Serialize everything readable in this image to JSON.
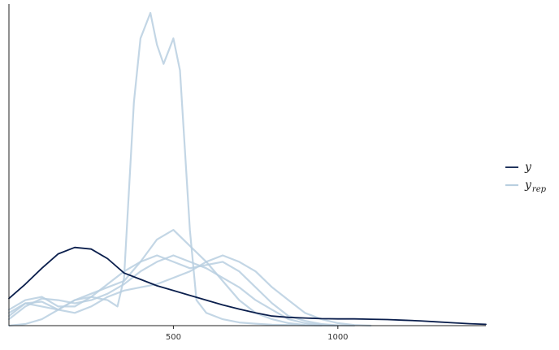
{
  "chart_data": {
    "type": "line",
    "title": "",
    "xlabel": "",
    "ylabel": "",
    "xlim": [
      0,
      1450
    ],
    "ylim": [
      0,
      1
    ],
    "x_ticks": [
      500,
      1000
    ],
    "x_tick_labels": [
      "500",
      "1000"
    ],
    "grid": false,
    "legend_position": "right",
    "colors": {
      "y": "#0b1f4d",
      "y_rep": "#b9cfe0"
    },
    "legend": [
      {
        "key": "y",
        "label": "y",
        "subscript": ""
      },
      {
        "key": "y_rep",
        "label": "y",
        "subscript": "rep"
      }
    ],
    "series": [
      {
        "key": "y",
        "x": [
          0,
          50,
          100,
          150,
          200,
          250,
          300,
          350,
          400,
          450,
          500,
          550,
          600,
          650,
          700,
          750,
          800,
          850,
          900,
          950,
          1000,
          1050,
          1100,
          1150,
          1200,
          1250,
          1300,
          1350,
          1400,
          1450
        ],
        "values": [
          0.085,
          0.13,
          0.18,
          0.225,
          0.245,
          0.24,
          0.21,
          0.165,
          0.145,
          0.125,
          0.11,
          0.095,
          0.08,
          0.065,
          0.052,
          0.04,
          0.03,
          0.026,
          0.024,
          0.022,
          0.021,
          0.021,
          0.02,
          0.019,
          0.017,
          0.015,
          0.012,
          0.009,
          0.006,
          0.004
        ]
      },
      {
        "key": "y_rep",
        "x": [
          0,
          50,
          100,
          150,
          200,
          250,
          300,
          330,
          350,
          380,
          400,
          430,
          450,
          470,
          500,
          520,
          550,
          570,
          600,
          650,
          700,
          750,
          800,
          850,
          900,
          950,
          1000
        ],
        "values": [
          0,
          0.005,
          0.02,
          0.05,
          0.08,
          0.09,
          0.08,
          0.06,
          0.15,
          0.7,
          0.9,
          0.98,
          0.88,
          0.82,
          0.9,
          0.8,
          0.3,
          0.08,
          0.04,
          0.02,
          0.01,
          0.006,
          0.003,
          0.002,
          0.001,
          0.0005,
          0
        ]
      },
      {
        "key": "y_rep",
        "x": [
          0,
          50,
          100,
          150,
          200,
          250,
          300,
          350,
          400,
          450,
          500,
          550,
          600,
          650,
          700,
          750,
          800,
          850,
          900,
          950,
          1000,
          1050
        ],
        "values": [
          0.05,
          0.08,
          0.09,
          0.06,
          0.06,
          0.09,
          0.13,
          0.17,
          0.2,
          0.22,
          0.2,
          0.18,
          0.19,
          0.2,
          0.17,
          0.12,
          0.07,
          0.03,
          0.015,
          0.005,
          0.001,
          0
        ]
      },
      {
        "key": "y_rep",
        "x": [
          0,
          50,
          100,
          150,
          200,
          250,
          300,
          350,
          400,
          450,
          500,
          550,
          600,
          650,
          700,
          750,
          800,
          850,
          900,
          950,
          1000
        ],
        "values": [
          0.02,
          0.06,
          0.085,
          0.08,
          0.07,
          0.08,
          0.1,
          0.13,
          0.17,
          0.2,
          0.22,
          0.2,
          0.18,
          0.15,
          0.12,
          0.08,
          0.05,
          0.02,
          0.008,
          0.002,
          0
        ]
      },
      {
        "key": "y_rep",
        "x": [
          0,
          50,
          100,
          150,
          200,
          250,
          300,
          350,
          400,
          450,
          500,
          550,
          600,
          650,
          700,
          750,
          800,
          850,
          900,
          950,
          1000,
          1050,
          1100
        ],
        "values": [
          0.03,
          0.07,
          0.075,
          0.05,
          0.04,
          0.06,
          0.09,
          0.11,
          0.12,
          0.13,
          0.15,
          0.17,
          0.2,
          0.22,
          0.2,
          0.17,
          0.12,
          0.08,
          0.04,
          0.02,
          0.008,
          0.002,
          0
        ]
      },
      {
        "key": "y_rep",
        "x": [
          0,
          50,
          100,
          150,
          200,
          250,
          300,
          350,
          400,
          450,
          500,
          550,
          600,
          650,
          700,
          750,
          800,
          850,
          900,
          950
        ],
        "values": [
          0.04,
          0.07,
          0.06,
          0.05,
          0.08,
          0.1,
          0.12,
          0.14,
          0.2,
          0.27,
          0.3,
          0.25,
          0.2,
          0.14,
          0.08,
          0.04,
          0.02,
          0.008,
          0.002,
          0
        ]
      }
    ]
  }
}
